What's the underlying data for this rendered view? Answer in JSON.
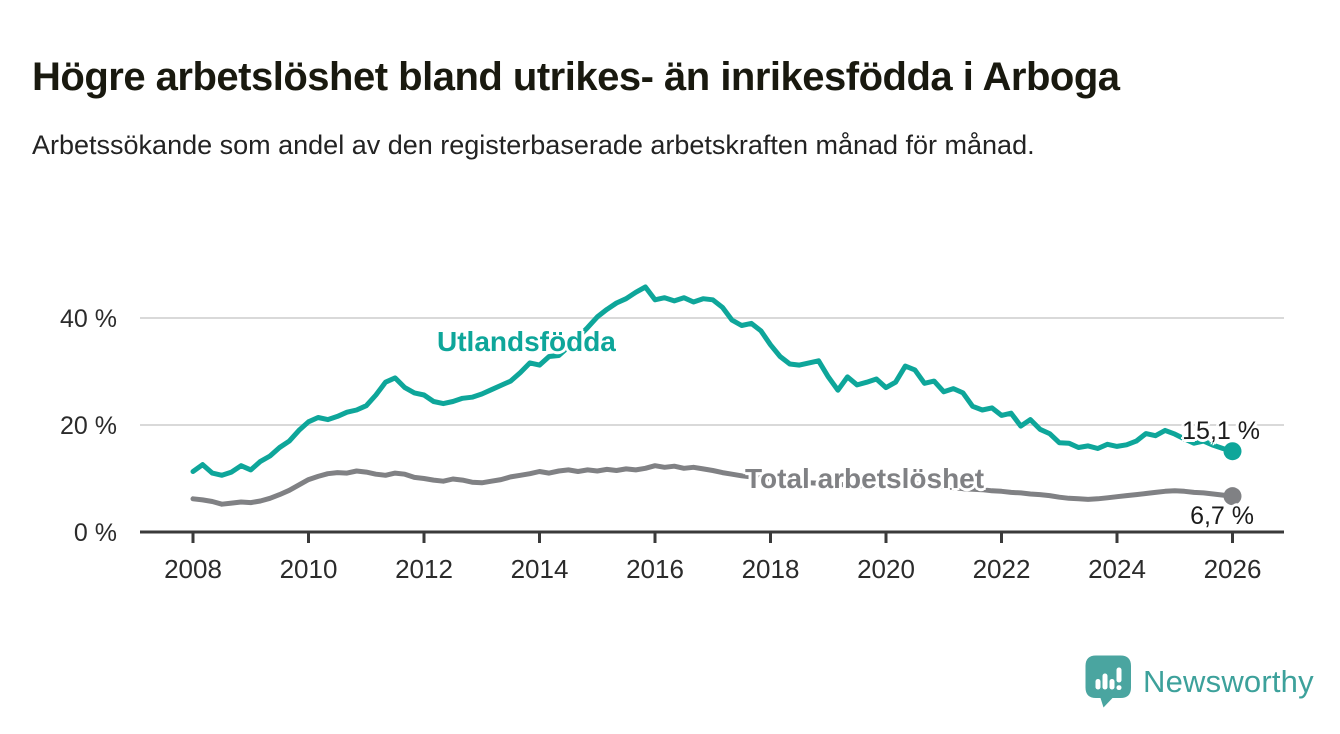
{
  "page": {
    "title": "Högre arbetslöshet bland utrikes- än inrikesfödda i Arboga",
    "subtitle": "Arbetssökande som andel av den registerbaserade arbetskraften månad för månad."
  },
  "branding": {
    "logo_text": "Newsworthy",
    "logo_icon": "bar-chart-speech-bubble-icon",
    "logo_icon_color": "#4aa5a0",
    "logo_text_color": "#3da19b"
  },
  "colors": {
    "grid": "#d9d9d9",
    "axis": "#3a3a3a",
    "tick_text": "#2b2b2b",
    "end_label_text": "#1b1b1b"
  },
  "chart_data": {
    "type": "line",
    "title": "Högre arbetslöshet bland utrikes- än inrikesfödda i Arboga",
    "subtitle": "Arbetssökande som andel av den registerbaserade arbetskraften månad för månad.",
    "unit": "%",
    "grid": "horizontal",
    "legend_position": "inline-labels",
    "x_start": 2008,
    "x_step_years": 0.1666667,
    "xlim": [
      2007.1,
      2026.9
    ],
    "ylim": [
      0,
      48
    ],
    "x_ticks": [
      2008,
      2010,
      2012,
      2014,
      2016,
      2018,
      2020,
      2022,
      2024,
      2026
    ],
    "y_ticks": [
      {
        "value": 0,
        "label": "0 %"
      },
      {
        "value": 20,
        "label": "20 %"
      },
      {
        "value": 40,
        "label": "40 %"
      }
    ],
    "series": [
      {
        "key": "utlandsfodda",
        "name": "Utlandsfödda",
        "color": "#0ea69a",
        "end_value": 15.1,
        "end_label": "15,1 %",
        "values": [
          11.3,
          12.6,
          11.0,
          10.6,
          11.2,
          12.4,
          11.6,
          13.2,
          14.2,
          15.8,
          17.0,
          19.0,
          20.6,
          21.4,
          21.0,
          21.6,
          22.4,
          22.8,
          23.6,
          25.6,
          28.0,
          28.8,
          27.0,
          26.0,
          25.6,
          24.4,
          24.0,
          24.4,
          25.0,
          25.2,
          25.8,
          26.6,
          27.4,
          28.2,
          29.8,
          31.6,
          31.2,
          32.8,
          33.0,
          34.6,
          36.4,
          38.2,
          40.2,
          41.6,
          42.8,
          43.6,
          44.8,
          45.8,
          43.4,
          43.8,
          43.2,
          43.8,
          43.0,
          43.6,
          43.4,
          42.0,
          39.6,
          38.6,
          39.0,
          37.6,
          35.0,
          32.8,
          31.4,
          31.2,
          31.6,
          32.0,
          29.0,
          26.5,
          29.0,
          27.5,
          28.0,
          28.6,
          27.0,
          28.0,
          31.0,
          30.3,
          27.8,
          28.2,
          26.2,
          26.8,
          26.0,
          23.5,
          22.8,
          23.2,
          21.8,
          22.2,
          19.8,
          21.0,
          19.2,
          18.4,
          16.7,
          16.6,
          15.8,
          16.1,
          15.6,
          16.4,
          16.0,
          16.3,
          17.0,
          18.4,
          18.0,
          19.0,
          18.3,
          17.4,
          16.6,
          17.0,
          16.2,
          15.6,
          15.1
        ]
      },
      {
        "key": "total",
        "name": "Total arbetslöshet",
        "color": "#808184",
        "end_value": 6.7,
        "end_label": "6,7 %",
        "values": [
          6.2,
          6.0,
          5.7,
          5.2,
          5.4,
          5.6,
          5.5,
          5.8,
          6.3,
          7.0,
          7.8,
          8.8,
          9.8,
          10.4,
          10.9,
          11.1,
          11.0,
          11.4,
          11.2,
          10.8,
          10.6,
          11.0,
          10.8,
          10.2,
          10.0,
          9.7,
          9.5,
          9.9,
          9.7,
          9.3,
          9.2,
          9.5,
          9.8,
          10.3,
          10.6,
          10.9,
          11.3,
          11.0,
          11.4,
          11.6,
          11.3,
          11.6,
          11.4,
          11.7,
          11.5,
          11.8,
          11.6,
          11.9,
          12.4,
          12.1,
          12.3,
          11.9,
          12.1,
          11.8,
          11.5,
          11.1,
          10.8,
          10.5,
          10.3,
          10.1,
          9.9,
          9.7,
          9.5,
          9.3,
          9.2,
          9.1,
          9.0,
          8.9,
          8.8,
          8.7,
          8.6,
          8.7,
          8.8,
          9.1,
          9.3,
          9.1,
          8.9,
          8.7,
          8.5,
          8.3,
          8.1,
          8.0,
          7.9,
          7.7,
          7.6,
          7.4,
          7.3,
          7.1,
          7.0,
          6.8,
          6.5,
          6.3,
          6.2,
          6.1,
          6.2,
          6.4,
          6.6,
          6.8,
          7.0,
          7.2,
          7.4,
          7.6,
          7.7,
          7.6,
          7.4,
          7.3,
          7.1,
          6.9,
          6.7
        ]
      }
    ]
  }
}
